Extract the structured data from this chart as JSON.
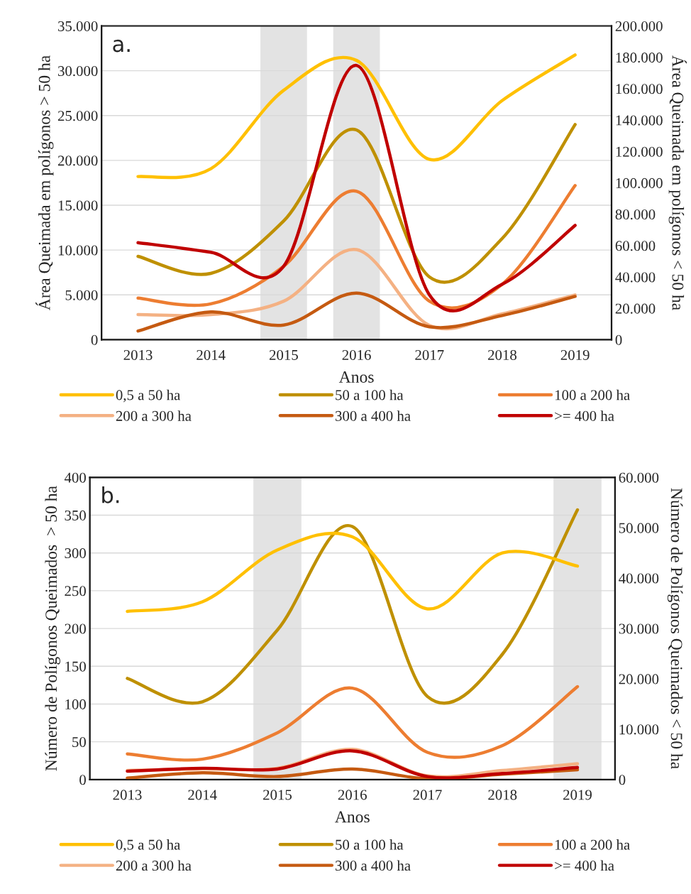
{
  "chart_data": [
    {
      "type": "line",
      "title": "a.",
      "xlabel": "Anos",
      "ylabel": "Área Queimada em polígonos > 50 ha",
      "y2label": "Área Queimada em polígonos < 50 ha",
      "categories": [
        "2013",
        "2014",
        "2015",
        "2016",
        "2017",
        "2018",
        "2019"
      ],
      "ylim": [
        0,
        35000
      ],
      "yticks": [
        0,
        {
          "value": 5000,
          "label": "5.000"
        },
        {
          "value": 10000,
          "label": "10.000"
        },
        {
          "value": 15000,
          "label": "15.000"
        },
        {
          "value": 20000,
          "label": "20.000"
        },
        {
          "value": 25000,
          "label": "25.000"
        },
        {
          "value": 30000,
          "label": "30.000"
        },
        {
          "value": 35000,
          "label": "35.000"
        }
      ],
      "y2lim": [
        0,
        200000
      ],
      "y2ticks": [
        0,
        {
          "value": 20000,
          "label": "20.000"
        },
        {
          "value": 40000,
          "label": "40.000"
        },
        {
          "value": 60000,
          "label": "60.000"
        },
        {
          "value": 80000,
          "label": "80.000"
        },
        {
          "value": 100000,
          "label": "100.000"
        },
        {
          "value": 120000,
          "label": "120.000"
        },
        {
          "value": 140000,
          "label": "140.000"
        },
        {
          "value": 160000,
          "label": "160.000"
        },
        {
          "value": 180000,
          "label": "180.000"
        },
        {
          "value": 200000,
          "label": "200.000"
        }
      ],
      "grid": "y",
      "legend": "bottom",
      "line_style": "solid",
      "marker": "none",
      "bands": [
        {
          "axis": "x",
          "from": "2015",
          "to": "2015",
          "color": "#e3e3e3"
        },
        {
          "axis": "x",
          "from": "2016",
          "to": "2016",
          "color": "#e3e3e3"
        }
      ],
      "series": [
        {
          "name": "0,5 a 50 ha",
          "color": "#ffc000",
          "axis": "y2",
          "values": [
            104000,
            109000,
            159000,
            178000,
            115000,
            152500,
            181500
          ]
        },
        {
          "name": "50 a 100 ha",
          "color": "#bf9000",
          "values": [
            9300,
            7400,
            13250,
            23400,
            7000,
            11300,
            24000
          ]
        },
        {
          "name": "100 a 200 ha",
          "color": "#ed7d31",
          "values": [
            4640,
            4000,
            8200,
            16560,
            4300,
            6200,
            17200
          ]
        },
        {
          "name": "200 a 300 ha",
          "color": "#f4b183",
          "values": [
            2800,
            2800,
            4300,
            10050,
            1600,
            2900,
            5000
          ]
        },
        {
          "name": "300 a 400 ha",
          "color": "#c55a11",
          "values": [
            970,
            3100,
            1640,
            5200,
            1440,
            2700,
            4830
          ]
        },
        {
          "name": ">= 400 ha",
          "color": "#c00000",
          "values": [
            10830,
            9750,
            8200,
            30600,
            5000,
            6200,
            12750
          ]
        }
      ]
    },
    {
      "type": "line",
      "title": "b.",
      "xlabel": "Anos",
      "ylabel": "Número de Polígonos Queimados  > 50 ha",
      "y2label": "Número de Polígonos Queimados < 50 ha",
      "categories": [
        "2013",
        "2014",
        "2015",
        "2016",
        "2017",
        "2018",
        "2019"
      ],
      "ylim": [
        0,
        400
      ],
      "yticks": [
        0,
        50,
        100,
        150,
        200,
        250,
        300,
        350,
        400
      ],
      "y2lim": [
        0,
        60000
      ],
      "y2ticks": [
        0,
        {
          "value": 10000,
          "label": "10.000"
        },
        {
          "value": 20000,
          "label": "20.000"
        },
        {
          "value": 30000,
          "label": "30.000"
        },
        {
          "value": 40000,
          "label": "40.000"
        },
        {
          "value": 50000,
          "label": "50.000"
        },
        {
          "value": 60000,
          "label": "60.000"
        }
      ],
      "grid": "y",
      "legend": "bottom",
      "line_style": "solid",
      "marker": "none",
      "bands": [
        {
          "axis": "x",
          "from": "2015",
          "to": "2015",
          "color": "#e3e3e3"
        },
        {
          "axis": "x",
          "from": "2019",
          "to": "2019",
          "color": "#e3e3e3"
        }
      ],
      "series": [
        {
          "name": "0,5 a 50 ha",
          "color": "#ffc000",
          "axis": "y2",
          "values": [
            33400,
            35300,
            45600,
            48200,
            33900,
            45000,
            42400
          ]
        },
        {
          "name": "50 a 100 ha",
          "color": "#bf9000",
          "values": [
            134,
            103,
            198,
            335,
            110,
            166,
            357
          ]
        },
        {
          "name": "100 a 200 ha",
          "color": "#ed7d31",
          "values": [
            34,
            27,
            62,
            121,
            36,
            45,
            123
          ]
        },
        {
          "name": "200 a 300 ha",
          "color": "#f4b183",
          "values": [
            12,
            14,
            15,
            40,
            5,
            12,
            21
          ]
        },
        {
          "name": "300 a 400 ha",
          "color": "#c55a11",
          "values": [
            2,
            9,
            4,
            14,
            1,
            7,
            13
          ]
        },
        {
          "name": ">= 400 ha",
          "color": "#c00000",
          "values": [
            11,
            15,
            14,
            38,
            4,
            8,
            16
          ]
        }
      ]
    }
  ]
}
